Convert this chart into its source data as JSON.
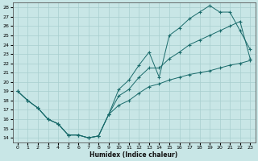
{
  "xlabel": "Humidex (Indice chaleur)",
  "xlim": [
    -0.5,
    23.5
  ],
  "ylim": [
    13.5,
    28.5
  ],
  "xticks": [
    0,
    1,
    2,
    3,
    4,
    5,
    6,
    7,
    8,
    9,
    10,
    11,
    12,
    13,
    14,
    15,
    16,
    17,
    18,
    19,
    20,
    21,
    22,
    23
  ],
  "yticks": [
    14,
    15,
    16,
    17,
    18,
    19,
    20,
    21,
    22,
    23,
    24,
    25,
    26,
    27,
    28
  ],
  "bg_color": "#c8e6e6",
  "grid_color": "#a8cece",
  "line_color": "#1a6b6b",
  "line_upper": [
    19.0,
    18.0,
    17.2,
    16.0,
    15.5,
    14.3,
    14.3,
    14.0,
    14.2,
    16.5,
    19.2,
    20.2,
    21.8,
    23.2,
    20.5,
    25.0,
    25.8,
    26.8,
    27.5,
    28.2,
    27.5,
    27.5,
    25.5,
    23.5
  ],
  "line_mid": [
    19.0,
    18.0,
    17.2,
    16.0,
    15.5,
    14.3,
    14.3,
    14.0,
    14.2,
    16.5,
    18.5,
    19.2,
    20.5,
    21.5,
    21.5,
    22.5,
    23.2,
    24.0,
    24.5,
    25.0,
    25.5,
    26.0,
    26.5,
    22.5
  ],
  "line_lower": [
    19.0,
    18.0,
    17.2,
    16.0,
    15.5,
    14.3,
    14.3,
    14.0,
    14.2,
    16.5,
    17.5,
    18.0,
    18.8,
    19.5,
    19.8,
    20.2,
    20.5,
    20.8,
    21.0,
    21.2,
    21.5,
    21.8,
    22.0,
    22.3
  ]
}
